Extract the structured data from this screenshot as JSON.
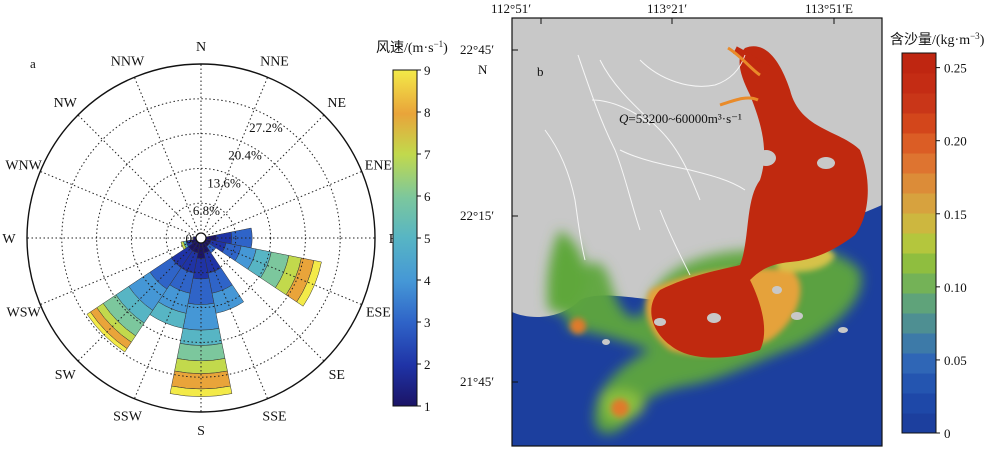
{
  "panels": {
    "a_label": "a",
    "b_label": "b"
  },
  "chart_data": [
    {
      "type": "windrose",
      "panel": "a",
      "directions": [
        "N",
        "NNE",
        "NE",
        "ENE",
        "E",
        "ESE",
        "SE",
        "SSE",
        "S",
        "SSW",
        "SW",
        "WSW",
        "W",
        "WNW",
        "NW",
        "NNW"
      ],
      "radial_ticks": [
        "0",
        "6.8%",
        "13.6%",
        "20.4%",
        "27.2%"
      ],
      "radial_values": [
        0,
        6.8,
        13.6,
        20.4,
        27.2
      ],
      "rmax": 34,
      "speed_bins": [
        1,
        2,
        3,
        4,
        5,
        6,
        7,
        8,
        9
      ],
      "colorbar": {
        "label": "风速/(m·s⁻¹)",
        "min": 1,
        "max": 9,
        "ticks": [
          "1",
          "2",
          "3",
          "4",
          "5",
          "6",
          "7",
          "8",
          "9"
        ]
      },
      "petals": [
        {
          "dir": "E",
          "angle": 90,
          "segments": [
            [
              1,
              3.0
            ],
            [
              2,
              6.0
            ],
            [
              3,
              10.0
            ]
          ]
        },
        {
          "dir": "ESE",
          "angle": 112.5,
          "segments": [
            [
              1,
              2.0
            ],
            [
              2,
              5.0
            ],
            [
              3,
              8.0
            ],
            [
              4,
              11.0
            ],
            [
              5,
              14.0
            ],
            [
              6,
              17.5
            ],
            [
              7,
              20.0
            ],
            [
              8,
              22.5
            ],
            [
              9,
              24.0
            ]
          ]
        },
        {
          "dir": "SE",
          "angle": 135,
          "segments": [
            [
              1,
              2.0
            ],
            [
              3,
              3.5
            ]
          ]
        },
        {
          "dir": "SSE",
          "angle": 157.5,
          "segments": [
            [
              1,
              3.0
            ],
            [
              2,
              7.0
            ],
            [
              3,
              11.0
            ],
            [
              4,
              15.0
            ]
          ]
        },
        {
          "dir": "S",
          "angle": 180,
          "segments": [
            [
              1,
              4.0
            ],
            [
              2,
              8.0
            ],
            [
              3,
              13.0
            ],
            [
              4,
              18.0
            ],
            [
              5,
              21.0
            ],
            [
              6,
              24.0
            ],
            [
              7,
              26.5
            ],
            [
              8,
              29.5
            ],
            [
              9,
              31.0
            ]
          ]
        },
        {
          "dir": "SSW",
          "angle": 202.5,
          "segments": [
            [
              1,
              3.0
            ],
            [
              2,
              7.0
            ],
            [
              3,
              11.0
            ],
            [
              4,
              15.0
            ],
            [
              5,
              18.0
            ]
          ]
        },
        {
          "dir": "SW",
          "angle": 225,
          "segments": [
            [
              1,
              3.0
            ],
            [
              2,
              7.0
            ],
            [
              3,
              12.0
            ],
            [
              4,
              17.0
            ],
            [
              5,
              20.0
            ],
            [
              6,
              23.0
            ],
            [
              7,
              24.5
            ],
            [
              8,
              26.0
            ],
            [
              9,
              26.8
            ]
          ]
        },
        {
          "dir": "WSW",
          "angle": 247.5,
          "segments": [
            [
              1,
              2.0
            ],
            [
              2,
              3.0
            ],
            [
              5,
              3.5
            ],
            [
              7,
              4.0
            ]
          ]
        },
        {
          "dir": "W",
          "angle": 270,
          "segments": [
            [
              1,
              1.5
            ]
          ]
        }
      ]
    },
    {
      "type": "heatmap",
      "panel": "b",
      "x_ticks": [
        "112°51′",
        "113°21′",
        "113°51′E"
      ],
      "y_ticks": [
        "22°45′",
        "22°15′",
        "21°45′"
      ],
      "north_label": "N",
      "annotation": {
        "q": "Q",
        "text": "=53200~60000m³·s⁻¹"
      },
      "colorbar": {
        "label": "含沙量/(kg·m⁻³)",
        "min": 0,
        "max": 0.26,
        "ticks": [
          "0",
          "0.05",
          "0.10",
          "0.15",
          "0.20",
          "0.25"
        ],
        "tick_values": [
          0,
          0.05,
          0.1,
          0.15,
          0.2,
          0.25
        ]
      },
      "colors": {
        "land": "#c8c8c8",
        "sea": "#1c3f9e",
        "high": "#c0290f"
      }
    }
  ]
}
